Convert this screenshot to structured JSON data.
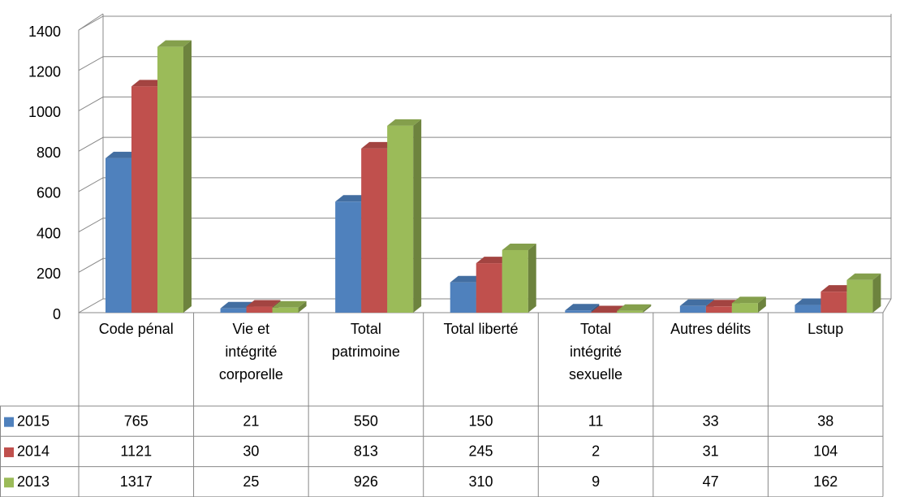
{
  "chart_data": {
    "type": "bar3d",
    "categories": [
      "Code pénal",
      "Vie et intégrité corporelle",
      "Total patrimoine",
      "Total liberté",
      "Total intégrité sexuelle",
      "Autres délits",
      "Lstup"
    ],
    "series": [
      {
        "name": "2015",
        "color": "#4f81bd",
        "values": [
          765,
          21,
          550,
          150,
          11,
          33,
          38
        ]
      },
      {
        "name": "2014",
        "color": "#c0504d",
        "values": [
          1121,
          30,
          813,
          245,
          2,
          31,
          104
        ]
      },
      {
        "name": "2013",
        "color": "#9bbb59",
        "values": [
          1317,
          25,
          926,
          310,
          9,
          47,
          162
        ]
      }
    ],
    "ylim": [
      0,
      1400
    ],
    "yticks": [
      0,
      200,
      400,
      600,
      800,
      1000,
      1200,
      1400
    ],
    "grid": true,
    "legend": "table"
  }
}
